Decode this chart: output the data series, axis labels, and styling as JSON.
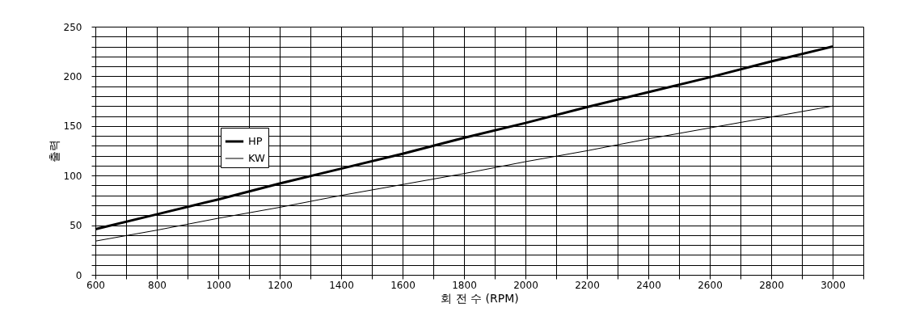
{
  "chart_data": {
    "type": "line",
    "xlabel": "회 전 수 (RPM)",
    "ylabel": "출력",
    "x": [
      600,
      800,
      1000,
      1200,
      1400,
      1600,
      1800,
      2000,
      2200,
      2400,
      2600,
      2800,
      3000
    ],
    "series": [
      {
        "name": "HP",
        "color": "#000000",
        "values": [
          46,
          61,
          76,
          92,
          107,
          122,
          138,
          153,
          169,
          184,
          199,
          215,
          230
        ]
      },
      {
        "name": "KW",
        "color": "#000000",
        "values": [
          34,
          45,
          57,
          68,
          80,
          91,
          102,
          114,
          125,
          137,
          148,
          159,
          170
        ]
      }
    ],
    "xlim": [
      600,
      3100
    ],
    "xticks": [
      600,
      {
        "value": 700,
        "label": null
      },
      800,
      {
        "value": 900,
        "label": null
      },
      1000,
      {
        "value": 1100,
        "label": null
      },
      1200,
      {
        "value": 1300,
        "label": null
      },
      1400,
      {
        "value": 1500,
        "label": null
      },
      1600,
      {
        "value": 1700,
        "label": null
      },
      1800,
      {
        "value": 1900,
        "label": null
      },
      2000,
      {
        "value": 2100,
        "label": null
      },
      2200,
      {
        "value": 2300,
        "label": null
      },
      2400,
      {
        "value": 2500,
        "label": null
      },
      2600,
      {
        "value": 2700,
        "label": null
      },
      2800,
      {
        "value": 2900,
        "label": null
      },
      3000,
      {
        "value": 3100,
        "label": null
      }
    ],
    "ylim": [
      0,
      250
    ],
    "yticks": [
      0,
      {
        "value": 10,
        "label": null
      },
      {
        "value": 20,
        "label": null
      },
      {
        "value": 30,
        "label": null
      },
      {
        "value": 40,
        "label": null
      },
      50,
      {
        "value": 60,
        "label": null
      },
      {
        "value": 70,
        "label": null
      },
      {
        "value": 80,
        "label": null
      },
      {
        "value": 90,
        "label": null
      },
      100,
      {
        "value": 110,
        "label": null
      },
      {
        "value": 120,
        "label": null
      },
      {
        "value": 130,
        "label": null
      },
      {
        "value": 140,
        "label": null
      },
      150,
      {
        "value": 160,
        "label": null
      },
      {
        "value": 170,
        "label": null
      },
      {
        "value": 180,
        "label": null
      },
      {
        "value": 190,
        "label": null
      },
      200,
      {
        "value": 210,
        "label": null
      },
      {
        "value": 220,
        "label": null
      },
      {
        "value": 230,
        "label": null
      },
      {
        "value": 240,
        "label": null
      },
      250
    ],
    "grid": true,
    "legend": "top left",
    "marker": "none",
    "line_style": "solid"
  }
}
